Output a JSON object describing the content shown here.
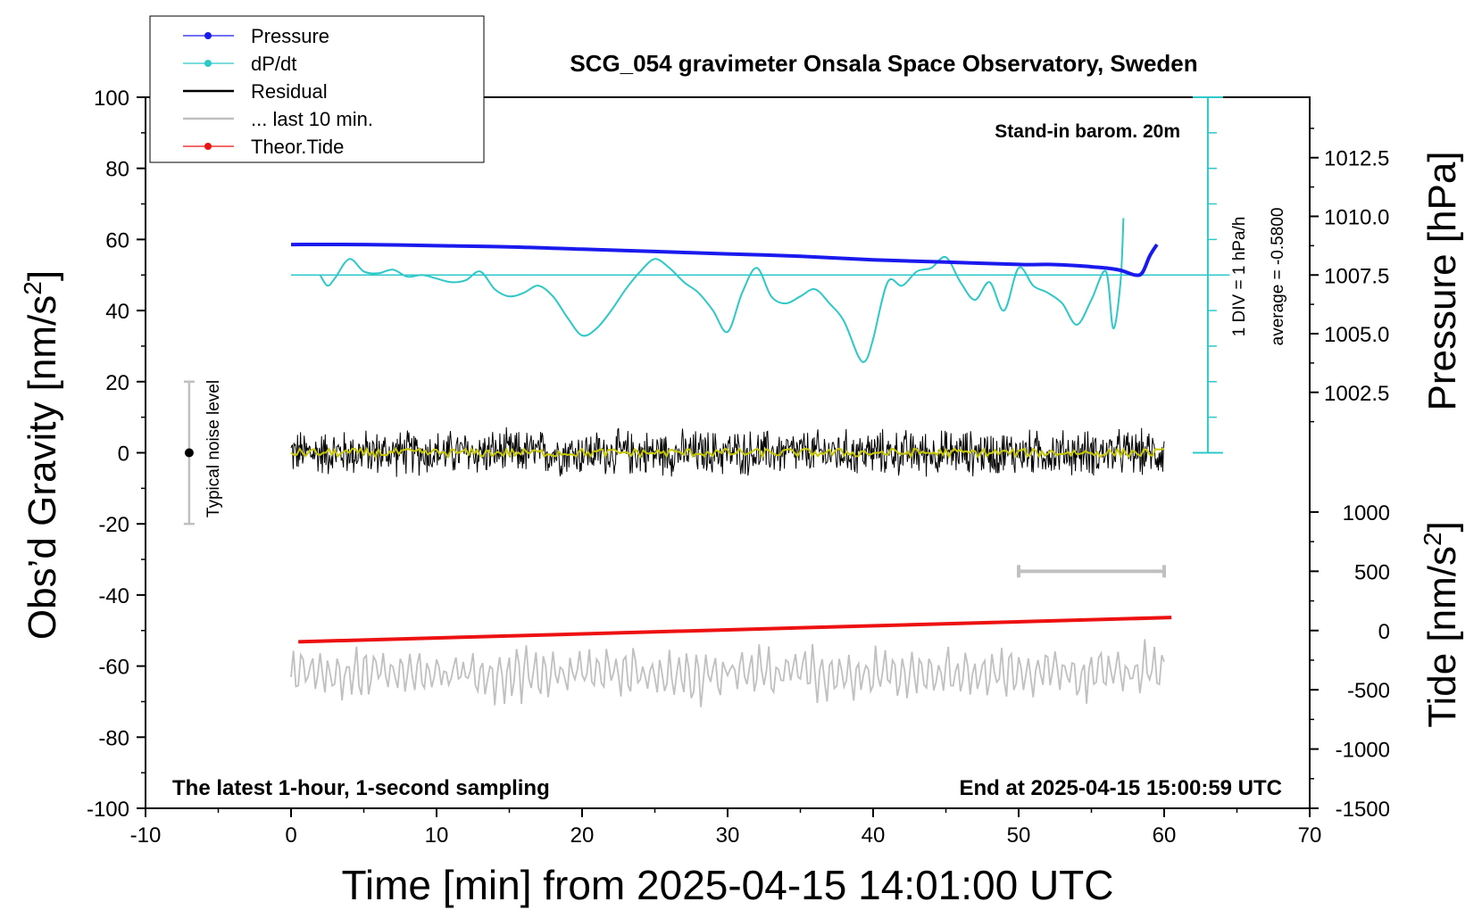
{
  "chart_data": {
    "type": "line",
    "title": "SCG_054 gravimeter Onsala Space Observatory, Sweden",
    "xlabel": "Time [min] from 2025-04-15 14:01:00 UTC",
    "ylabel_left": "Obs’d Gravity [nm/s",
    "ylabel_left_sup": "2",
    "ylabel_left_end": "]",
    "ylabel_pressure": "Pressure [hPa]",
    "ylabel_tide": "Tide [nm/s",
    "ylabel_tide_sup": "2",
    "ylabel_tide_end": "]",
    "xlim": [
      -10,
      70
    ],
    "ylim": [
      -100,
      100
    ],
    "x_ticks": [
      "-10",
      "0",
      "10",
      "20",
      "30",
      "40",
      "50",
      "60",
      "70"
    ],
    "y_ticks": [
      "-100",
      "-80",
      "-60",
      "-40",
      "-20",
      "0",
      "20",
      "40",
      "60",
      "80",
      "100"
    ],
    "pressure_ticks": [
      "1002.5",
      "1005.0",
      "1007.5",
      "1010.0",
      "1012.5"
    ],
    "tide_ticks": [
      "-1500",
      "-1000",
      "-500",
      "0",
      "500",
      "1000"
    ],
    "annotations": {
      "stand_in": "Stand-in barom. 20m",
      "latest": "The latest 1-hour, 1-second sampling",
      "end_at": "End at 2025-04-15 15:00:59 UTC",
      "div_label": "1 DIV = 1 hPa/h",
      "average_label": "average = -0.5800",
      "noise_label": "Typical noise level"
    },
    "legend": {
      "placement": "top-left",
      "entries": [
        "Pressure",
        "dP/dt",
        "Residual",
        "... last 10 min.",
        "Theor.Tide"
      ]
    },
    "series": [
      {
        "name": "Pressure",
        "color": "#1a1aee",
        "x": [
          0,
          5,
          10,
          15,
          20,
          25,
          30,
          35,
          40,
          45,
          50,
          52,
          54,
          55,
          56,
          57,
          58,
          58.5,
          59,
          59.5
        ],
        "values": [
          1008.8,
          1008.8,
          1008.75,
          1008.7,
          1008.6,
          1008.5,
          1008.4,
          1008.3,
          1008.15,
          1008.05,
          1007.95,
          1007.95,
          1007.9,
          1007.85,
          1007.8,
          1007.7,
          1007.5,
          1007.6,
          1008.3,
          1008.8
        ]
      },
      {
        "name": "dP/dt",
        "color": "#2ec8c8",
        "x": [
          2,
          2.5,
          3,
          4,
          5,
          6,
          7,
          8,
          9,
          10,
          11,
          12,
          13,
          14,
          15,
          16,
          17,
          18,
          19,
          20,
          21,
          22,
          23,
          24,
          25,
          26,
          27,
          28,
          29,
          30,
          31,
          32,
          33,
          34,
          35,
          36,
          37,
          38,
          39,
          39.5,
          40,
          41,
          42,
          43,
          44,
          45,
          46,
          47,
          48,
          49,
          50,
          51,
          52,
          53,
          54,
          55,
          56,
          56.5,
          57,
          57.2
        ],
        "values": [
          0.0,
          -0.3,
          -0.1,
          0.45,
          0.1,
          0.05,
          0.15,
          -0.05,
          0.0,
          -0.1,
          -0.2,
          -0.15,
          0.1,
          -0.4,
          -0.6,
          -0.5,
          -0.3,
          -0.6,
          -1.2,
          -1.7,
          -1.5,
          -1.0,
          -0.4,
          0.1,
          0.45,
          0.2,
          -0.2,
          -0.5,
          -1.0,
          -1.6,
          -0.5,
          0.2,
          -0.6,
          -0.8,
          -0.6,
          -0.4,
          -0.8,
          -1.3,
          -2.3,
          -2.4,
          -1.8,
          -0.2,
          -0.3,
          0.1,
          0.2,
          0.5,
          -0.2,
          -0.7,
          -0.2,
          -1.0,
          0.2,
          -0.3,
          -0.5,
          -0.8,
          -1.4,
          -0.7,
          0.1,
          -1.5,
          -0.2,
          1.6
        ]
      },
      {
        "name": "Residual",
        "color": "#000000",
        "x_range": [
          0,
          60
        ],
        "amplitude": 5
      },
      {
        "name": "... last 10 min.",
        "color": "#c0c0c0",
        "x_range": [
          0,
          60
        ],
        "baseline": -62
      },
      {
        "name": "Theor.Tide",
        "color": "#ee1111",
        "x": [
          0.5,
          60.5
        ],
        "values": [
          -95,
          110
        ]
      }
    ],
    "noise_bar": {
      "x": -7,
      "center": 0,
      "range": [
        -20,
        20
      ]
    },
    "interval_bar": {
      "x": [
        50,
        60
      ]
    }
  }
}
